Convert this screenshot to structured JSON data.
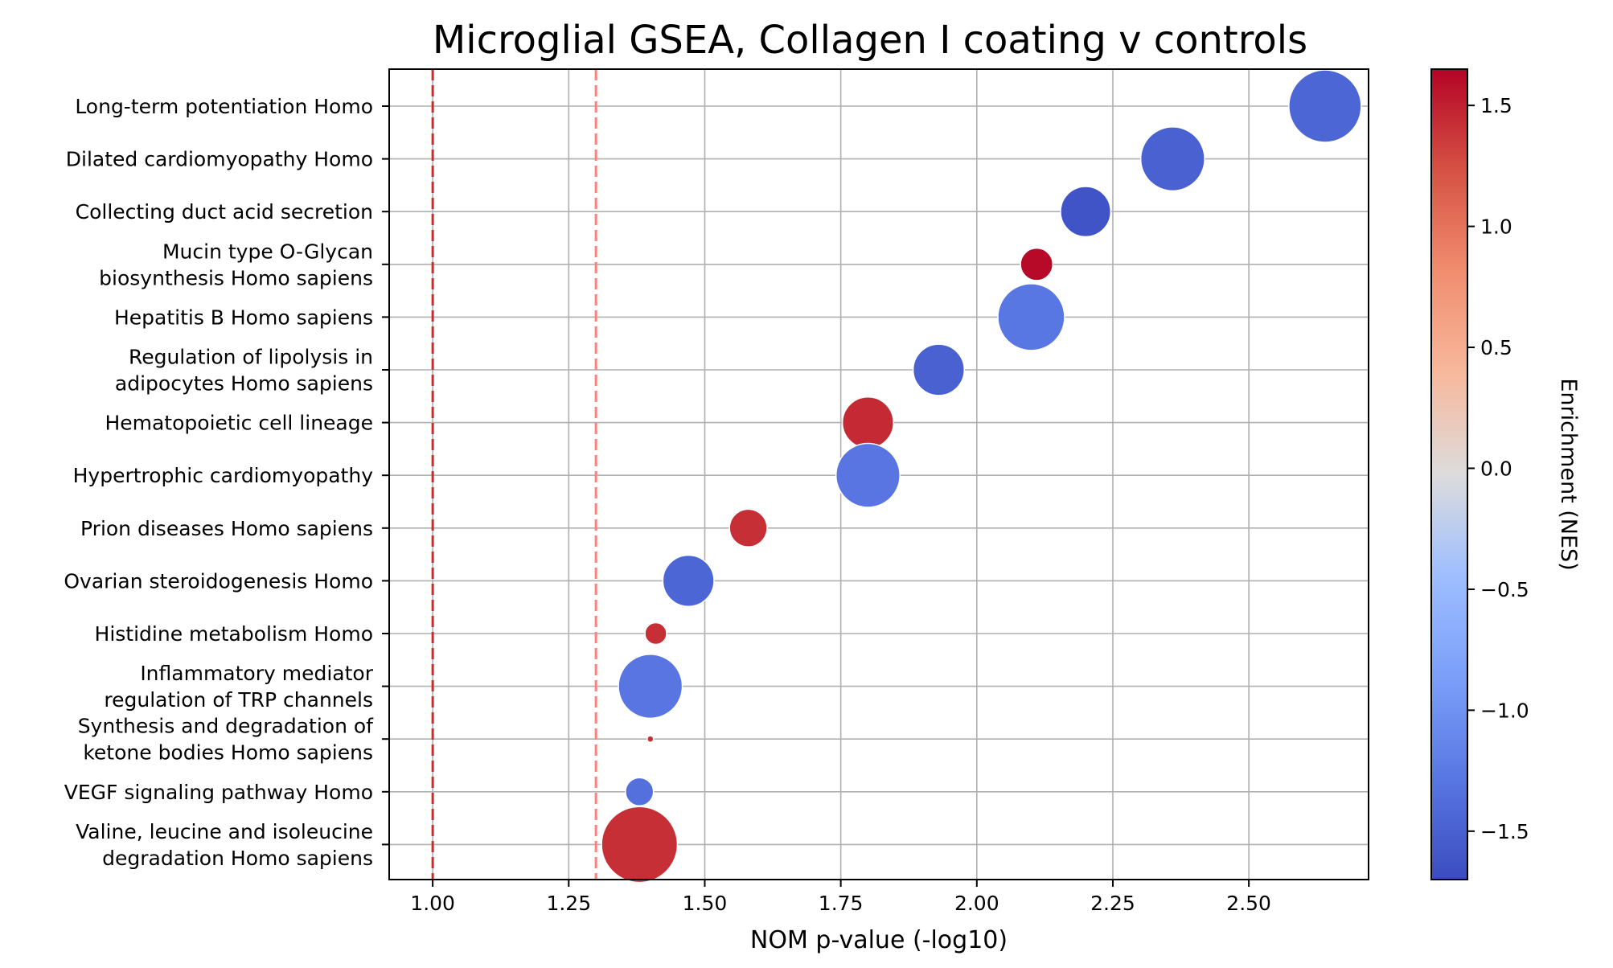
{
  "chart_data": {
    "type": "scatter",
    "title": "Microglial GSEA, Collagen I coating v controls",
    "xlabel": "NOM p-value (-log10)",
    "colorbar_label": "Enrichment (NES)",
    "xlim": [
      0.92,
      2.72
    ],
    "x_ticks": [
      1.0,
      1.25,
      1.5,
      1.75,
      2.0,
      2.25,
      2.5
    ],
    "x_tick_labels": [
      "1.00",
      "1.25",
      "1.50",
      "1.75",
      "2.00",
      "2.25",
      "2.50"
    ],
    "colorbar_range": [
      -1.7,
      1.65
    ],
    "colorbar_ticks": [
      1.5,
      1.0,
      0.5,
      0.0,
      -0.5,
      -1.0,
      -1.5
    ],
    "colorbar_tick_labels": [
      "1.5",
      "1.0",
      "0.5",
      "0.0",
      "−0.5",
      "−1.0",
      "−1.5"
    ],
    "colormap": "coolwarm",
    "grid": true,
    "threshold_lines": [
      {
        "x": 1.0,
        "color": "#d62728"
      },
      {
        "x": 1.3,
        "color": "#ff7f7f"
      }
    ],
    "points": [
      {
        "label": [
          "Long-term potentiation Homo"
        ],
        "x": 2.64,
        "nes": -1.45,
        "size": 1.0
      },
      {
        "label": [
          "Dilated cardiomyopathy Homo"
        ],
        "x": 2.36,
        "nes": -1.5,
        "size": 0.78
      },
      {
        "label": [
          "Collecting duct acid secretion"
        ],
        "x": 2.2,
        "nes": -1.62,
        "size": 0.48
      },
      {
        "label": [
          "Mucin type O-Glycan",
          "biosynthesis Homo sapiens"
        ],
        "x": 2.11,
        "nes": 1.62,
        "size": 0.2
      },
      {
        "label": [
          "Hepatitis B Homo sapiens"
        ],
        "x": 2.1,
        "nes": -1.28,
        "size": 0.85
      },
      {
        "label": [
          "Regulation of lipolysis in",
          "adipocytes Homo sapiens"
        ],
        "x": 1.93,
        "nes": -1.5,
        "size": 0.5
      },
      {
        "label": [
          "Hematopoietic cell lineage"
        ],
        "x": 1.8,
        "nes": 1.45,
        "size": 0.5
      },
      {
        "label": [
          "Hypertrophic cardiomyopathy"
        ],
        "x": 1.8,
        "nes": -1.3,
        "size": 0.78
      },
      {
        "label": [
          "Prion diseases Homo sapiens"
        ],
        "x": 1.58,
        "nes": 1.42,
        "size": 0.27
      },
      {
        "label": [
          "Ovarian steroidogenesis Homo"
        ],
        "x": 1.47,
        "nes": -1.45,
        "size": 0.5
      },
      {
        "label": [
          "Histidine metabolism Homo"
        ],
        "x": 1.41,
        "nes": 1.42,
        "size": 0.09
      },
      {
        "label": [
          "Inflammatory mediator",
          "regulation of TRP channels"
        ],
        "x": 1.4,
        "nes": -1.3,
        "size": 0.78
      },
      {
        "label": [
          "Synthesis and degradation of",
          "ketone bodies Homo sapiens"
        ],
        "x": 1.4,
        "nes": 1.42,
        "size": 0.008
      },
      {
        "label": [
          "VEGF signaling pathway Homo"
        ],
        "x": 1.38,
        "nes": -1.35,
        "size": 0.15
      },
      {
        "label": [
          "Valine, leucine and isoleucine",
          "degradation Homo sapiens"
        ],
        "x": 1.38,
        "nes": 1.42,
        "size": 1.1
      }
    ]
  }
}
